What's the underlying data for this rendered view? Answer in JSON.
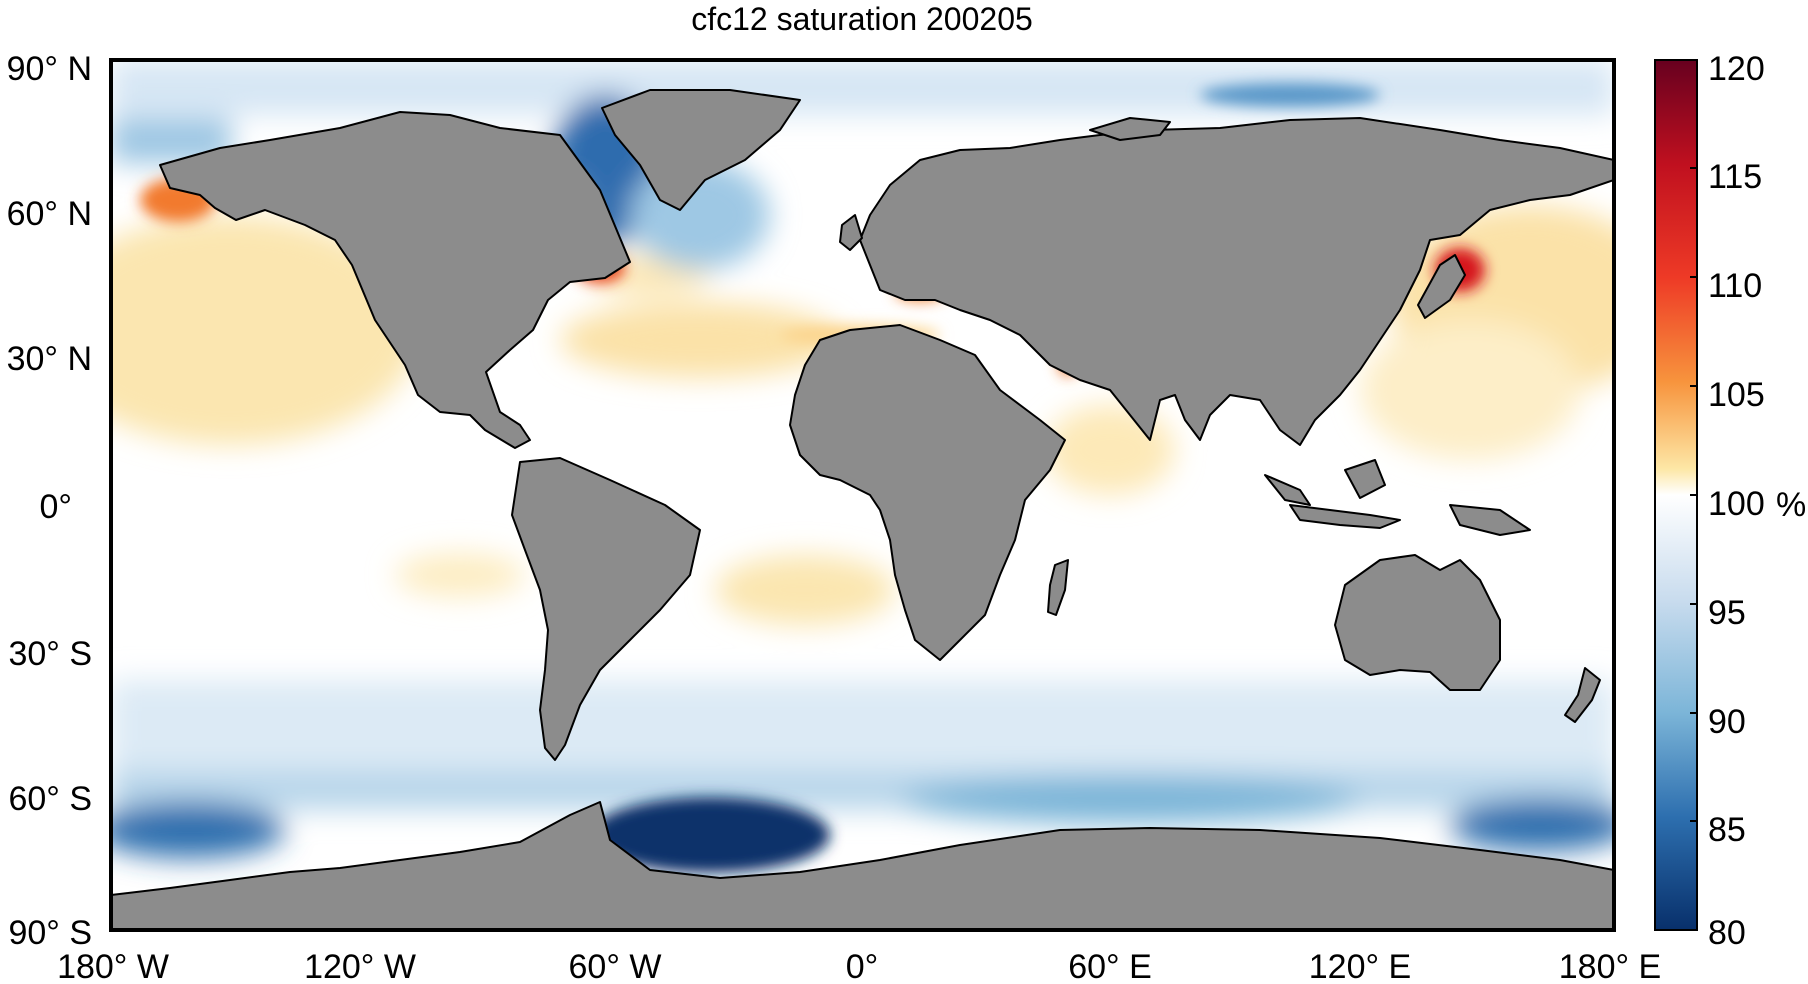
{
  "title": "cfc12 saturation 200205",
  "map": {
    "projection": "equirectangular",
    "lon_range": [
      -180,
      180
    ],
    "lat_range": [
      -90,
      90
    ],
    "land_color": "#8c8c8c",
    "ocean_baseline_color": "#ffffff",
    "lat_tick_labels": [
      {
        "lat": 90,
        "text": "90° N"
      },
      {
        "lat": 60,
        "text": "60° N"
      },
      {
        "lat": 30,
        "text": "30° N"
      },
      {
        "lat": 0,
        "text": "0°"
      },
      {
        "lat": -30,
        "text": "30° S"
      },
      {
        "lat": -60,
        "text": "60° S"
      },
      {
        "lat": -90,
        "text": "90° S"
      }
    ],
    "lon_tick_labels": [
      {
        "lon": -180,
        "text": "180° W"
      },
      {
        "lon": -120,
        "text": "120° W"
      },
      {
        "lon": -60,
        "text": "60° W"
      },
      {
        "lon": 0,
        "text": "0°"
      },
      {
        "lon": 60,
        "text": "60° E"
      },
      {
        "lon": 120,
        "text": "120° E"
      },
      {
        "lon": 180,
        "text": "180° E"
      }
    ]
  },
  "colorbar": {
    "min": 80,
    "max": 120,
    "unit": "%",
    "ticks": [
      {
        "v": 120,
        "text": "120"
      },
      {
        "v": 115,
        "text": "115"
      },
      {
        "v": 110,
        "text": "110"
      },
      {
        "v": 105,
        "text": "105"
      },
      {
        "v": 100,
        "text": "100"
      },
      {
        "v": 95,
        "text": "95"
      },
      {
        "v": 90,
        "text": "90"
      },
      {
        "v": 85,
        "text": "85"
      },
      {
        "v": 80,
        "text": "80"
      }
    ],
    "colors": {
      "120": "#67001f",
      "115": "#d6151d",
      "110": "#f16a29",
      "105": "#f6c35f",
      "100": "#ffffff",
      "95": "#c9dcee",
      "90": "#7cb5d8",
      "85": "#2d6faf",
      "80": "#08306b"
    }
  },
  "chart_data": {
    "type": "heatmap",
    "title": "cfc12 saturation 200205",
    "variable": "cfc12 saturation",
    "unit": "%",
    "value_range": [
      80,
      120
    ],
    "regions": [
      {
        "area": "Labrador Sea / Baffin Bay",
        "value": 85
      },
      {
        "area": "Greenland Sea / Nordic Seas",
        "value": 90
      },
      {
        "area": "North Atlantic subtropics",
        "value": 102
      },
      {
        "area": "North Pacific",
        "value": 102
      },
      {
        "area": "Bering Sea / Gulf of Alaska",
        "value": 110
      },
      {
        "area": "Gulf of St. Lawrence",
        "value": 112
      },
      {
        "area": "Mediterranean Sea",
        "value": 103
      },
      {
        "area": "Red Sea / Persian Gulf",
        "value": 108
      },
      {
        "area": "Sea of Japan / Yellow Sea",
        "value": 115
      },
      {
        "area": "Kuroshio region",
        "value": 104
      },
      {
        "area": "Equatorial band",
        "value": 100
      },
      {
        "area": "South Atlantic subtropics",
        "value": 102
      },
      {
        "area": "Southern Ocean (40–55° S)",
        "value": 96
      },
      {
        "area": "Weddell Sea",
        "value": 81
      },
      {
        "area": "Ross Sea",
        "value": 84
      },
      {
        "area": "Arctic Ocean",
        "value": 94
      }
    ]
  }
}
